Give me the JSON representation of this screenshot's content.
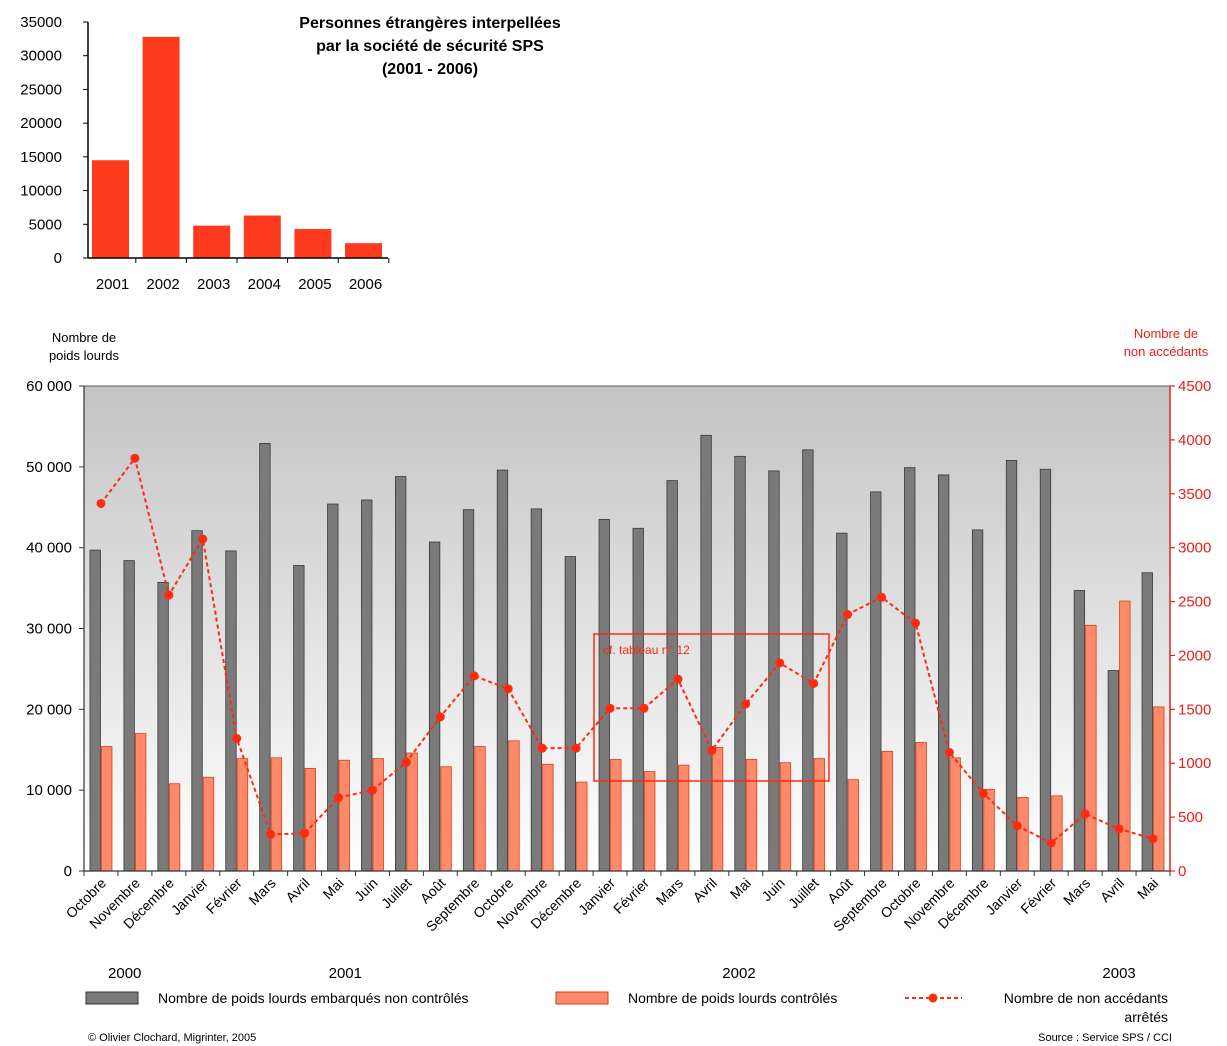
{
  "chart_data": [
    {
      "type": "bar",
      "title_lines": [
        "Personnes étrangères interpellées",
        "par la société de sécurité SPS",
        "(2001 - 2006)"
      ],
      "categories": [
        "2001",
        "2002",
        "2003",
        "2004",
        "2005",
        "2006"
      ],
      "values": [
        14500,
        32800,
        4800,
        6300,
        4300,
        2200
      ],
      "ylim": [
        0,
        35000
      ],
      "yticks": [
        "35000",
        "30000",
        "25000",
        "20000",
        "15000",
        "10000",
        "5000",
        "0"
      ],
      "colors": {
        "bar": "#ff3b1f"
      }
    },
    {
      "type": "bar+line",
      "ylabel_left_lines": [
        "Nombre de",
        "poids lourds"
      ],
      "ylabel_right_lines": [
        "Nombre de",
        "non accédants"
      ],
      "ylim_left": [
        0,
        60000
      ],
      "ylim_right": [
        0,
        4500
      ],
      "yticks_left": [
        "60 000",
        "50 000",
        "40 000",
        "30 000",
        "20 000",
        "10 000",
        "0"
      ],
      "yticks_right": [
        "4500",
        "4000",
        "3500",
        "3000",
        "2500",
        "2000",
        "1500",
        "1000",
        "500",
        "0"
      ],
      "categories": [
        "Octobre",
        "Novembre",
        "Décembre",
        "Janvier",
        "Février",
        "Mars",
        "Avril",
        "Mai",
        "Juin",
        "Juillet",
        "Août",
        "Septembre",
        "Octobre",
        "Novembre",
        "Décembre",
        "Janvier",
        "Février",
        "Mars",
        "Avril",
        "Mai",
        "Juin",
        "Juillet",
        "Août",
        "Septembre",
        "Octobre",
        "Novembre",
        "Décembre",
        "Janvier",
        "Février",
        "Mars",
        "Avril",
        "Mai"
      ],
      "years": [
        {
          "label": "2000",
          "at_index": 0.7
        },
        {
          "label": "2001",
          "at_index": 7.2
        },
        {
          "label": "2002",
          "at_index": 18.8
        },
        {
          "label": "2003",
          "at_index": 30.0
        }
      ],
      "series": [
        {
          "name": "Nombre de poids lourds embarqués non contrôlés",
          "axis": "left",
          "kind": "bar",
          "values": [
            39700,
            38400,
            35700,
            42100,
            39600,
            52900,
            37800,
            45400,
            45900,
            48800,
            40700,
            44700,
            49600,
            44800,
            38900,
            43500,
            42400,
            48300,
            53900,
            51300,
            49500,
            52100,
            41800,
            46900,
            49900,
            49000,
            42200,
            50800,
            49700,
            34700,
            24800,
            36900
          ]
        },
        {
          "name": "Nombre de poids lourds contrôlés",
          "axis": "left",
          "kind": "bar",
          "values": [
            15400,
            17000,
            10800,
            11600,
            13900,
            14000,
            12700,
            13700,
            13900,
            14600,
            12900,
            15400,
            16100,
            13200,
            11000,
            13800,
            12300,
            13100,
            15300,
            13800,
            13400,
            13900,
            11300,
            14800,
            15900,
            14000,
            10100,
            9100,
            9300,
            30400,
            33400,
            20300
          ]
        },
        {
          "name": "Nombre de non accédants arrêtés",
          "name_lines": [
            "Nombre de non accédants",
            "arrêtés"
          ],
          "axis": "right",
          "kind": "line",
          "values": [
            3410,
            3830,
            2560,
            3080,
            1230,
            340,
            350,
            680,
            750,
            1010,
            1430,
            1810,
            1690,
            1140,
            1140,
            1510,
            1510,
            1780,
            1120,
            1550,
            1930,
            1740,
            2380,
            2540,
            2300,
            1100,
            720,
            420,
            260,
            530,
            390,
            300
          ]
        }
      ],
      "annotation": {
        "text": "cf. tableau n° 12"
      },
      "colors": {
        "bar_dark": "#7a7a7a",
        "bar_light": "#ff8a6a",
        "line": "#ff2a10",
        "axis_right": "#e8201c"
      }
    }
  ],
  "credits": {
    "left": "© Olivier Clochard, Migrinter, 2005",
    "right": "Source : Service SPS / CCI"
  }
}
